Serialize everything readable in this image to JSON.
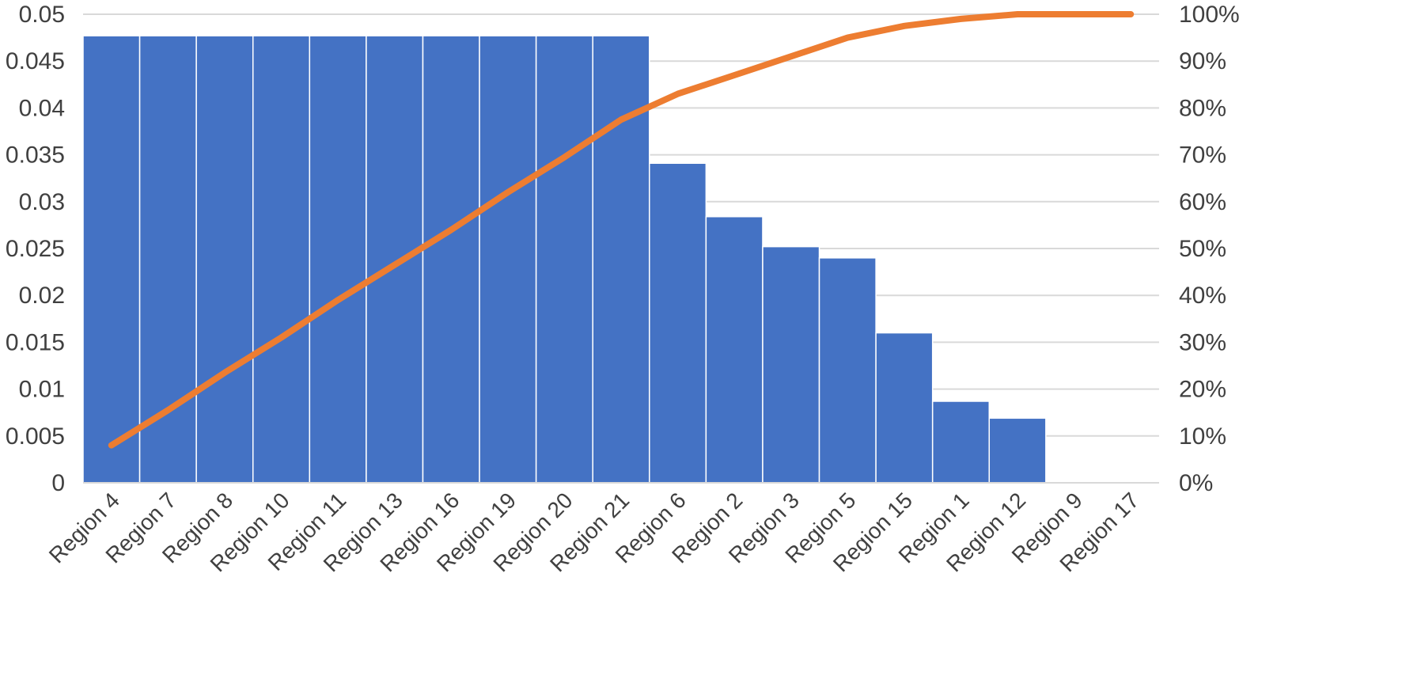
{
  "chart_data": {
    "type": "bar",
    "categories": [
      "Region 4",
      "Region 7",
      "Region 8",
      "Region 10",
      "Region 11",
      "Region 13",
      "Region 16",
      "Region 19",
      "Region 20",
      "Region 21",
      "Region 6",
      "Region 2",
      "Region 3",
      "Region 5",
      "Region 15",
      "Region 1",
      "Region 12",
      "Region 9",
      "Region 17"
    ],
    "series": [
      {
        "type": "bar",
        "axis": "left",
        "color": "#4472C4",
        "values": [
          0.0477,
          0.0477,
          0.0477,
          0.0477,
          0.0477,
          0.0477,
          0.0477,
          0.0477,
          0.0477,
          0.0477,
          0.0341,
          0.0284,
          0.0252,
          0.024,
          0.016,
          0.0087,
          0.0069,
          0,
          0
        ]
      },
      {
        "type": "line",
        "axis": "right",
        "color": "#ED7D31",
        "values": [
          0.08,
          0.155,
          0.235,
          0.31,
          0.39,
          0.465,
          0.54,
          0.62,
          0.695,
          0.775,
          0.83,
          0.87,
          0.91,
          0.95,
          0.975,
          0.99,
          1.0,
          1.0,
          1.0
        ]
      }
    ],
    "y_left": {
      "lim": [
        0,
        0.05
      ],
      "ticks": [
        0,
        0.005,
        0.01,
        0.015,
        0.02,
        0.025,
        0.03,
        0.035,
        0.04,
        0.045,
        0.05
      ],
      "tick_labels": [
        "0",
        "0.005",
        "0.01",
        "0.015",
        "0.02",
        "0.025",
        "0.03",
        "0.035",
        "0.04",
        "0.045",
        "0.05"
      ]
    },
    "y_right": {
      "lim": [
        0,
        1
      ],
      "ticks": [
        0,
        0.1,
        0.2,
        0.3,
        0.4,
        0.5,
        0.6,
        0.7,
        0.8,
        0.9,
        1.0
      ],
      "tick_labels": [
        "0%",
        "10%",
        "20%",
        "30%",
        "40%",
        "50%",
        "60%",
        "70%",
        "80%",
        "90%",
        "100%"
      ]
    },
    "title": "",
    "xlabel": "",
    "ylabel": "",
    "grid": true,
    "gridline_color": "#D9D9D9",
    "legend": "none"
  }
}
